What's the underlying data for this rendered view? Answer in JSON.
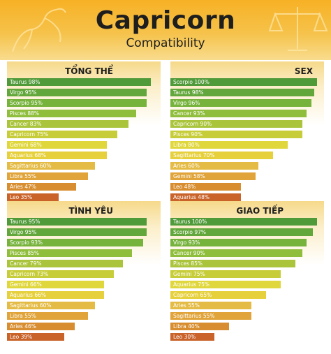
{
  "page": {
    "title": "Capricorn",
    "subtitle": "Compatibility"
  },
  "icons": {
    "left": "goat-silhouette-icon",
    "right": "libra-scales-icon"
  },
  "chart_data": [
    {
      "type": "bar",
      "orientation": "horizontal",
      "title": "TỔNG THỂ",
      "xlim": [
        0,
        100
      ],
      "categories": [
        "Taurus",
        "Virgo",
        "Scorpio",
        "Pisces",
        "Cancer",
        "Capricorn",
        "Gemini",
        "Aquarius",
        "Sagittarius",
        "Libra",
        "Aries",
        "Leo"
      ],
      "values": [
        98,
        95,
        95,
        88,
        83,
        75,
        68,
        68,
        60,
        55,
        47,
        35
      ],
      "labels": [
        "Taurus 98%",
        "Virgo 95%",
        "Scorpio 95%",
        "Pisces 88%",
        "Cancer 83%",
        "Capricorn 75%",
        "Gemini 68%",
        "Aquarius 68%",
        "Sagittarius 60%",
        "Libra 55%",
        "Aries 47%",
        "Leo 35%"
      ]
    },
    {
      "type": "bar",
      "orientation": "horizontal",
      "title": "SEX",
      "xlim": [
        0,
        100
      ],
      "categories": [
        "Scorpio",
        "Taurus",
        "Virgo",
        "Cancer",
        "Capricorn",
        "Pisces",
        "Libra",
        "Sagittarius",
        "Aries",
        "Gemini",
        "Leo",
        "Aquarius"
      ],
      "values": [
        100,
        98,
        96,
        93,
        90,
        90,
        80,
        70,
        60,
        58,
        48,
        48
      ],
      "labels": [
        "Scorpio 100%",
        "Taurus 98%",
        "Virgo 96%",
        "Cancer 93%",
        "Capricorn 90%",
        "Pisces 90%",
        "Libra 80%",
        "Sagittarius 70%",
        "Aries 60%",
        "Gemini 58%",
        "Leo 48%",
        "Aquarius 48%"
      ]
    },
    {
      "type": "bar",
      "orientation": "horizontal",
      "title": "TÌNH YÊU",
      "xlim": [
        0,
        100
      ],
      "categories": [
        "Taurus",
        "Virgo",
        "Scorpio",
        "Pisces",
        "Cancer",
        "Capricorn",
        "Gemini",
        "Aquarius",
        "Sagittarius",
        "Libra",
        "Aries",
        "Leo"
      ],
      "values": [
        95,
        95,
        93,
        85,
        79,
        73,
        66,
        66,
        60,
        55,
        46,
        39
      ],
      "labels": [
        "Taurus 95%",
        "Virgo 95%",
        "Scorpio 93%",
        "Pisces 85%",
        "Cancer 79%",
        "Capricorn 73%",
        "Gemini 66%",
        "Aquarius 66%",
        "Sagittarius 60%",
        "Libra 55%",
        "Aries 46%",
        "Leo 39%"
      ]
    },
    {
      "type": "bar",
      "orientation": "horizontal",
      "title": "GIAO TIẾP",
      "xlim": [
        0,
        100
      ],
      "categories": [
        "Taurus",
        "Scorpio",
        "Virgo",
        "Cancer",
        "Pisces",
        "Gemini",
        "Aquarius",
        "Capricorn",
        "Aries",
        "Sagittarius",
        "Libra",
        "Leo"
      ],
      "values": [
        100,
        97,
        93,
        90,
        85,
        75,
        75,
        65,
        55,
        55,
        40,
        30
      ],
      "labels": [
        "Taurus 100%",
        "Scorpio 97%",
        "Virgo 93%",
        "Cancer 90%",
        "Pisces 85%",
        "Gemini 75%",
        "Aquarius 75%",
        "Capricorn 65%",
        "Aries 55%",
        "Sagittarius 55%",
        "Libra 40%",
        "Leo 30%"
      ]
    }
  ],
  "bar_colors": [
    "#4f9a39",
    "#62a73b",
    "#76b33d",
    "#8fbe3c",
    "#aac43c",
    "#c7cd39",
    "#e0d73c",
    "#e6d03c",
    "#e4bb45",
    "#e0a43b",
    "#d88e30",
    "#c9632a"
  ],
  "label_text_color": "#ffffff"
}
